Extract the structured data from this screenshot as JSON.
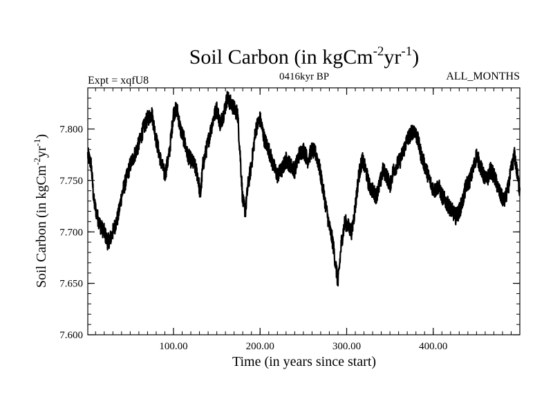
{
  "chart_data": {
    "type": "line",
    "title_main": "Soil Carbon (in kgCm",
    "title_sup1": "-2",
    "title_mid": "yr",
    "title_sup2": "-1",
    "title_end": ")",
    "subtitle_left": "Expt = xqfU8",
    "subtitle_center": "0416kyr BP",
    "subtitle_right": "ALL_MONTHS",
    "xlabel": "Time (in years since start)",
    "ylabel_main": "Soil Carbon (in kgCm",
    "ylabel_sup1": "-2",
    "ylabel_mid": "yr",
    "ylabel_sup2": "-1",
    "ylabel_end": ")",
    "xlim": [
      1,
      500
    ],
    "ylim": [
      7.6,
      7.84
    ],
    "x_ticks": [
      {
        "value": 100,
        "label": "100.00"
      },
      {
        "value": 200,
        "label": "200.00"
      },
      {
        "value": 300,
        "label": "300.00"
      },
      {
        "value": 400,
        "label": "400.00"
      }
    ],
    "y_ticks": [
      {
        "value": 7.6,
        "label": "7.600"
      },
      {
        "value": 7.65,
        "label": "7.650"
      },
      {
        "value": 7.7,
        "label": "7.700"
      },
      {
        "value": 7.75,
        "label": "7.750"
      },
      {
        "value": 7.8,
        "label": "7.800"
      }
    ],
    "line_color": "#000000",
    "series": [
      {
        "name": "Soil Carbon",
        "x": [
          1,
          5,
          8,
          12,
          16,
          20,
          24,
          28,
          32,
          36,
          40,
          45,
          50,
          55,
          60,
          65,
          70,
          75,
          80,
          85,
          90,
          95,
          100,
          104,
          108,
          112,
          116,
          120,
          124,
          128,
          131,
          134,
          138,
          142,
          146,
          150,
          154,
          158,
          162,
          166,
          170,
          174,
          177,
          180,
          183,
          186,
          190,
          195,
          200,
          205,
          210,
          215,
          220,
          225,
          230,
          235,
          240,
          245,
          250,
          255,
          260,
          265,
          268,
          272,
          276,
          280,
          284,
          287,
          290,
          294,
          298,
          302,
          306,
          310,
          314,
          318,
          322,
          326,
          330,
          334,
          338,
          342,
          346,
          350,
          354,
          358,
          362,
          366,
          370,
          374,
          378,
          382,
          386,
          390,
          394,
          398,
          402,
          406,
          410,
          414,
          418,
          422,
          426,
          430,
          434,
          438,
          442,
          446,
          450,
          454,
          458,
          462,
          466,
          470,
          474,
          478,
          482,
          486,
          490,
          494,
          498,
          500
        ],
        "values": [
          7.775,
          7.765,
          7.73,
          7.715,
          7.705,
          7.7,
          7.69,
          7.695,
          7.705,
          7.715,
          7.735,
          7.75,
          7.765,
          7.775,
          7.785,
          7.8,
          7.81,
          7.815,
          7.79,
          7.77,
          7.755,
          7.775,
          7.815,
          7.82,
          7.8,
          7.79,
          7.775,
          7.77,
          7.765,
          7.755,
          7.735,
          7.765,
          7.78,
          7.795,
          7.81,
          7.82,
          7.805,
          7.815,
          7.83,
          7.825,
          7.82,
          7.815,
          7.775,
          7.73,
          7.72,
          7.745,
          7.765,
          7.8,
          7.81,
          7.79,
          7.78,
          7.765,
          7.755,
          7.76,
          7.77,
          7.765,
          7.76,
          7.775,
          7.78,
          7.77,
          7.78,
          7.775,
          7.765,
          7.745,
          7.725,
          7.705,
          7.69,
          7.67,
          7.65,
          7.69,
          7.71,
          7.705,
          7.7,
          7.725,
          7.755,
          7.77,
          7.76,
          7.745,
          7.74,
          7.735,
          7.745,
          7.76,
          7.755,
          7.745,
          7.76,
          7.765,
          7.77,
          7.78,
          7.79,
          7.795,
          7.8,
          7.79,
          7.775,
          7.765,
          7.755,
          7.745,
          7.74,
          7.745,
          7.735,
          7.73,
          7.725,
          7.72,
          7.715,
          7.72,
          7.73,
          7.745,
          7.75,
          7.76,
          7.775,
          7.765,
          7.755,
          7.75,
          7.76,
          7.755,
          7.745,
          7.735,
          7.73,
          7.74,
          7.76,
          7.775,
          7.75,
          7.74
        ]
      }
    ]
  }
}
